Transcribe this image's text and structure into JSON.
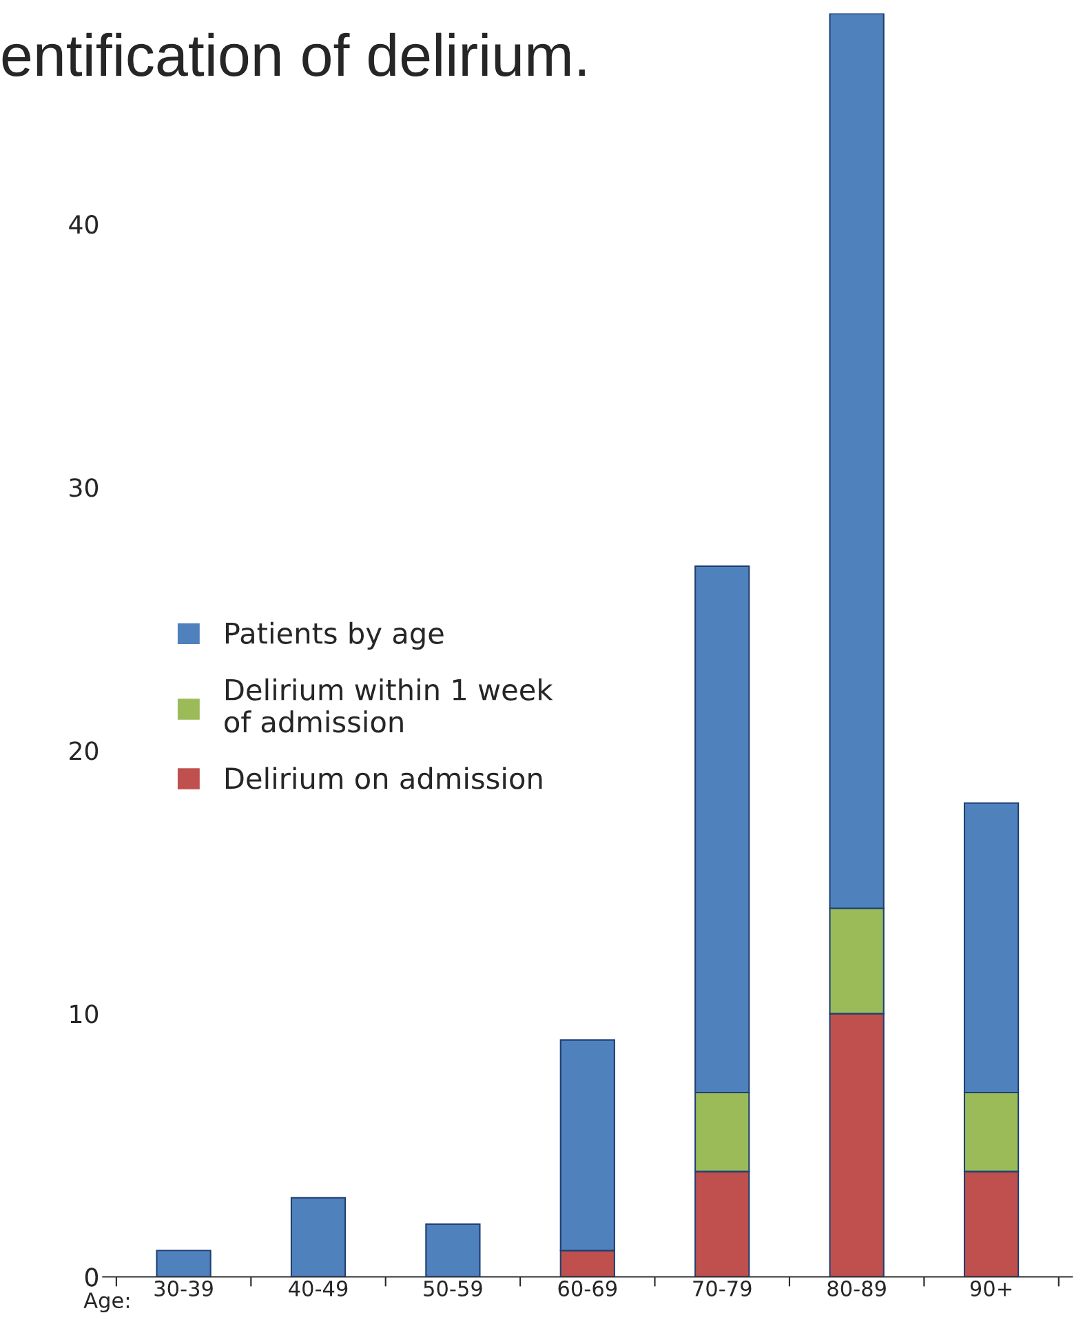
{
  "chart_data": {
    "type": "bar",
    "title": "entification of delirium.",
    "xlabel": "Age:",
    "categories": [
      "30-39",
      "40-49",
      "50-59",
      "60-69",
      "70-79",
      "80-89",
      "90+"
    ],
    "stacked": true,
    "series": [
      {
        "name": "Delirium on admission",
        "color": "#c0504d",
        "values": [
          0,
          0,
          0,
          1,
          4,
          10,
          4
        ]
      },
      {
        "name": "Delirium within 1 week\nof admission",
        "color": "#9bbb59",
        "values": [
          0,
          0,
          0,
          0,
          3,
          4,
          3
        ]
      },
      {
        "name": "Patients by age",
        "color": "#4f81bd",
        "values": [
          1,
          3,
          2,
          8,
          20,
          34,
          11
        ]
      }
    ],
    "ylim": [
      0,
      48
    ],
    "yticks": [
      0,
      10,
      20,
      30,
      40
    ],
    "grid": false,
    "legend": "center left"
  }
}
